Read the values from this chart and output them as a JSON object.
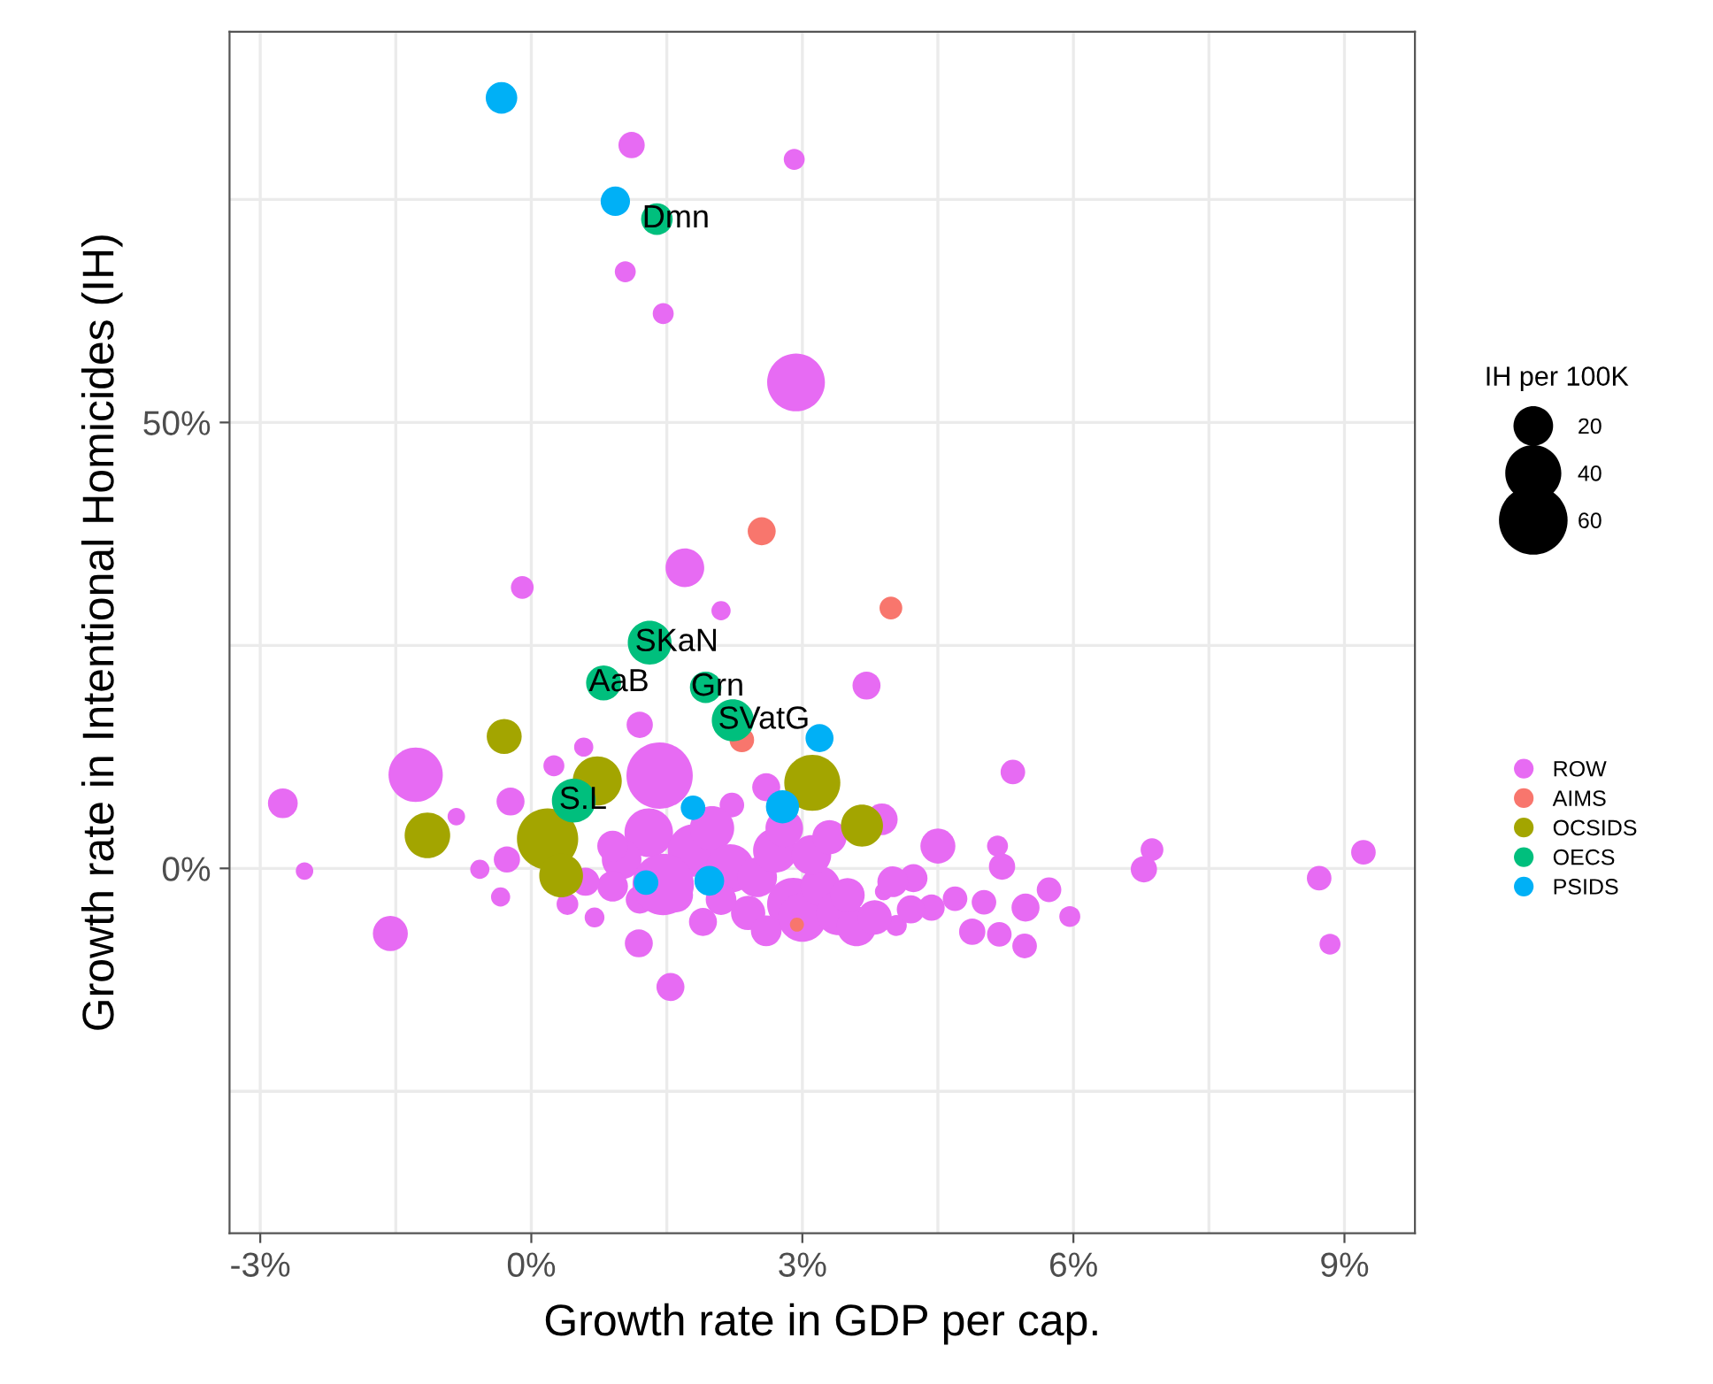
{
  "chart_data": {
    "type": "bubble",
    "xlabel": "Growth rate in GDP per cap.",
    "ylabel": "Growth rate in Intentional Homicides (IH)",
    "legend_title": "IH per 100K",
    "size_legend": [
      20,
      40,
      60
    ],
    "legend": "right",
    "grid": true,
    "xlim": [
      -3.34,
      9.78
    ],
    "ylim": [
      -40.9,
      93.8
    ],
    "xticks": [
      {
        "value": -3,
        "label": "-3%"
      },
      {
        "value": -1.5,
        "label": null
      },
      {
        "value": 0,
        "label": "0%"
      },
      {
        "value": 1.5,
        "label": null
      },
      {
        "value": 3,
        "label": "3%"
      },
      {
        "value": 4.5,
        "label": null
      },
      {
        "value": 6,
        "label": "6%"
      },
      {
        "value": 7.5,
        "label": null
      },
      {
        "value": 9,
        "label": "9%"
      }
    ],
    "yticks": [
      {
        "value": -25,
        "label": null
      },
      {
        "value": 0,
        "label": "0%"
      },
      {
        "value": 25,
        "label": null
      },
      {
        "value": 50,
        "label": "50%"
      },
      {
        "value": 75,
        "label": null
      }
    ],
    "annotations": [
      {
        "text": "Dmn",
        "x": 1.39,
        "y": 72.8
      },
      {
        "text": "SKaN",
        "x": 1.31,
        "y": 25.3
      },
      {
        "text": "AaB",
        "x": 0.8,
        "y": 20.8
      },
      {
        "text": "Grn",
        "x": 1.93,
        "y": 20.3
      },
      {
        "text": "SVatG",
        "x": 2.23,
        "y": 16.6
      },
      {
        "text": "S.L",
        "x": 0.47,
        "y": 7.6
      }
    ],
    "series": [
      {
        "name": "ROW",
        "color": "#e76bf3",
        "x": [
          1.11,
          2.91,
          1.04,
          1.46,
          2.93,
          1.7,
          -0.1,
          2.1,
          1.2,
          0.58,
          0.25,
          1.42,
          -1.28,
          -2.75,
          -0.23,
          -0.83,
          -0.27,
          -0.57,
          -2.51,
          -0.34,
          -1.56,
          1.19,
          1.54,
          2.22,
          3.71,
          3.88,
          5.33,
          6.87,
          6.78,
          9.21,
          8.72,
          8.84,
          4.5,
          4.23,
          5.16,
          5.21,
          3.9,
          4.69,
          5.01,
          5.73,
          5.47,
          5.96,
          4.88,
          5.18,
          5.46,
          4.43,
          4.04,
          3.51,
          2.6,
          1.3,
          1.8,
          2.0,
          2.2,
          1.0,
          0.9,
          1.2,
          1.6,
          2.5,
          2.7,
          2.9,
          3.0,
          3.2,
          3.4,
          3.6,
          3.8,
          2.4,
          2.1,
          1.9,
          2.6,
          3.1,
          3.3,
          2.8,
          0.6,
          0.4,
          0.7,
          0.9,
          1.46,
          3.5,
          4.0,
          4.2
        ],
        "values": [
          81.1,
          79.5,
          66.9,
          62.2,
          54.5,
          33.7,
          31.5,
          28.9,
          16.1,
          13.6,
          11.5,
          10.4,
          10.5,
          7.3,
          7.5,
          5.8,
          1.0,
          -0.1,
          -0.3,
          -3.2,
          -7.3,
          -8.4,
          -13.3,
          7.1,
          20.5,
          5.5,
          10.8,
          2.1,
          -0.1,
          1.8,
          -1.1,
          -8.5,
          2.5,
          -1.1,
          2.5,
          0.2,
          -2.6,
          -3.4,
          -3.8,
          -2.4,
          -4.4,
          -5.4,
          -7.1,
          -7.4,
          -8.7,
          -4.4,
          -6.4,
          null,
          9.1,
          4.0,
          2.0,
          4.5,
          0.0,
          1.0,
          -2.0,
          -3.5,
          -3.0,
          -1.0,
          2.0,
          -4.0,
          -5.5,
          -2.0,
          -5.0,
          -6.5,
          -5.5,
          -5.0,
          -3.5,
          -6.0,
          -7.0,
          1.5,
          3.5,
          4.5,
          -1.5,
          -4.0,
          -5.5,
          2.5,
          -1.8,
          -3.0,
          -1.5,
          -4.6
        ],
        "sizes": [
          8.8,
          5.6,
          5.6,
          5.6,
          42.5,
          19,
          6.6,
          4.7,
          8.8,
          4.7,
          5.6,
          56,
          37.5,
          11.3,
          10,
          3.9,
          8.8,
          4.7,
          3.9,
          4.7,
          15.6,
          10,
          10,
          7.7,
          10,
          12.7,
          7.7,
          6.6,
          8.8,
          7.7,
          7.7,
          5.6,
          15.6,
          10,
          5.6,
          8.8,
          3.9,
          7.7,
          7.7,
          7.7,
          10,
          5.6,
          8.8,
          7.7,
          7.7,
          8.8,
          5.6,
          null,
          10,
          30,
          35,
          25,
          30,
          20,
          12,
          10,
          15,
          20,
          25,
          35,
          30,
          20,
          25,
          20,
          15,
          15,
          12,
          10,
          12,
          20,
          15,
          18,
          10,
          6,
          5,
          12,
          48,
          15,
          12,
          10
        ]
      },
      {
        "name": "AIMS",
        "color": "#f8766d",
        "x": [
          2.55,
          3.98,
          2.33,
          2.94
        ],
        "values": [
          37.8,
          29.2,
          14.4,
          -6.3
        ],
        "sizes": [
          10,
          6.6,
          7.7,
          2.5
        ]
      },
      {
        "name": "OCSIDS",
        "color": "#a3a500",
        "x": [
          -0.3,
          0.73,
          -1.15,
          0.18,
          0.33,
          3.11,
          3.66
        ],
        "values": [
          14.8,
          9.8,
          3.7,
          3.3,
          -0.8,
          9.6,
          4.8
        ],
        "sizes": [
          15.6,
          30.6,
          26.4,
          47.8,
          24.4,
          40,
          22.5
        ]
      },
      {
        "name": "OECS",
        "color": "#00bf7d",
        "x": [
          1.39,
          1.31,
          0.8,
          1.93,
          2.23,
          0.47
        ],
        "values": [
          72.8,
          25.3,
          20.8,
          20.3,
          16.6,
          7.6
        ],
        "sizes": [
          12.7,
          24.4,
          15.6,
          12.7,
          22.5,
          24.4
        ]
      },
      {
        "name": "PSIDS",
        "color": "#00b0f6",
        "x": [
          -0.33,
          0.93,
          1.79,
          1.27,
          1.97,
          3.19,
          2.78
        ],
        "values": [
          86.4,
          74.8,
          6.8,
          -1.6,
          -1.4,
          14.6,
          6.9
        ],
        "sizes": [
          12.7,
          11,
          7.7,
          7.7,
          11.3,
          10,
          14
        ]
      }
    ]
  }
}
